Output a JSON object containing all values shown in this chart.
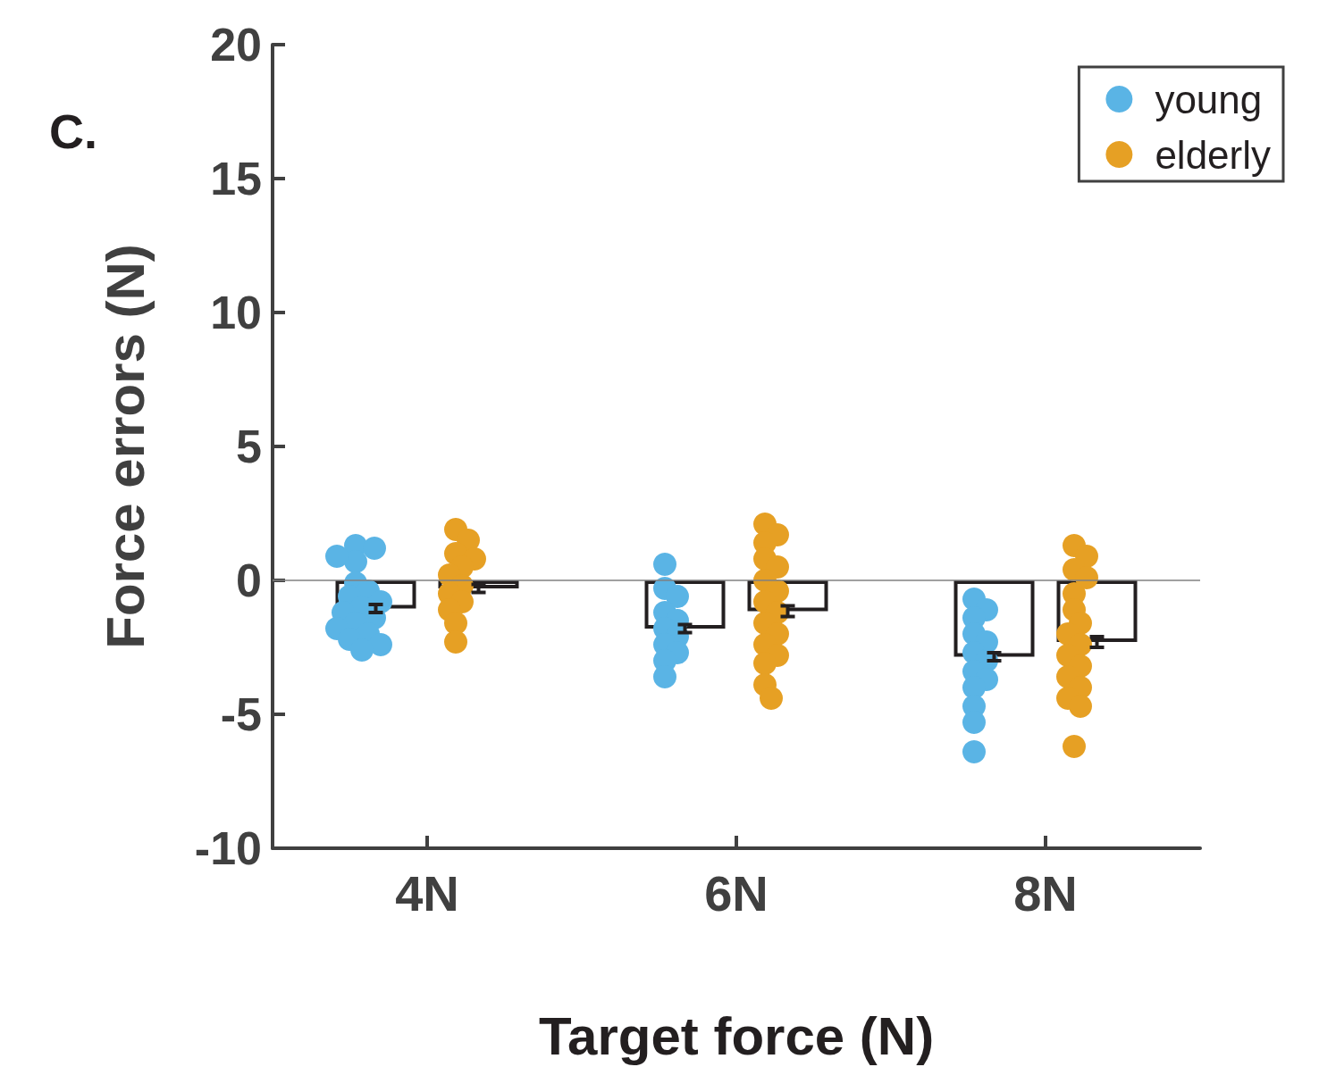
{
  "chart_data": {
    "type": "bar",
    "xlabel": "Target force (N)",
    "ylabel": "Force errors (N)",
    "annotations": [
      "C."
    ],
    "categories": [
      "4N",
      "6N",
      "8N"
    ],
    "ylim": [
      -10,
      20
    ],
    "yticks": [
      -10,
      -5,
      0,
      5,
      10,
      15,
      20
    ],
    "grid": false,
    "legend": "top right",
    "marker": "circle",
    "ref_lines": [
      {
        "axis": "y",
        "value": 0,
        "color": "#808080"
      }
    ],
    "series": [
      {
        "color": "#231f20",
        "values": [
          -1.05,
          -1.8,
          -2.85
        ],
        "errors": [
          0.15,
          0.15,
          0.15
        ]
      },
      {
        "color": "#231f20",
        "values": [
          -0.3,
          -1.15,
          -2.3
        ],
        "errors": [
          0.15,
          0.2,
          0.2
        ]
      },
      {
        "type": "scatter",
        "name": "young",
        "color": "#5ab4e5",
        "x": [
          "4N",
          "4N",
          "4N",
          "4N",
          "4N",
          "4N",
          "4N",
          "4N",
          "4N",
          "4N",
          "4N",
          "4N",
          "4N",
          "4N",
          "4N",
          "4N",
          "4N",
          "6N",
          "6N",
          "6N",
          "6N",
          "6N",
          "6N",
          "6N",
          "6N",
          "6N",
          "6N",
          "6N",
          "8N",
          "8N",
          "8N",
          "8N",
          "8N",
          "8N",
          "8N",
          "8N",
          "8N",
          "8N",
          "8N",
          "8N",
          "8N"
        ],
        "values": [
          1.3,
          1.2,
          0.7,
          0.9,
          -0.1,
          -0.4,
          -0.6,
          -0.8,
          -1.0,
          -1.2,
          -1.4,
          -1.6,
          -1.8,
          -2.0,
          -2.2,
          -2.4,
          -2.6,
          0.6,
          -0.3,
          -0.6,
          -1.2,
          -1.5,
          -1.8,
          -2.1,
          -2.4,
          -2.7,
          -3.0,
          -3.6,
          -0.7,
          -1.1,
          -1.4,
          -2.0,
          -2.3,
          -2.7,
          -3.0,
          -3.4,
          -3.7,
          -4.0,
          -4.7,
          -5.3,
          -6.4
        ]
      },
      {
        "type": "scatter",
        "name": "elderly",
        "color": "#e6a024",
        "x": [
          "4N",
          "4N",
          "4N",
          "4N",
          "4N",
          "4N",
          "4N",
          "4N",
          "4N",
          "4N",
          "4N",
          "4N",
          "6N",
          "6N",
          "6N",
          "6N",
          "6N",
          "6N",
          "6N",
          "6N",
          "6N",
          "6N",
          "6N",
          "6N",
          "6N",
          "6N",
          "6N",
          "6N",
          "8N",
          "8N",
          "8N",
          "8N",
          "8N",
          "8N",
          "8N",
          "8N",
          "8N",
          "8N",
          "8N",
          "8N",
          "8N",
          "8N",
          "8N",
          "8N"
        ],
        "values": [
          1.9,
          1.5,
          1.0,
          0.8,
          0.5,
          0.2,
          -0.2,
          -0.5,
          -0.8,
          -1.1,
          -1.6,
          -2.3,
          2.1,
          1.7,
          1.4,
          0.8,
          0.5,
          0,
          -0.4,
          -0.8,
          -1.2,
          -1.6,
          -2.0,
          -2.4,
          -2.8,
          -3.1,
          -3.9,
          -4.4,
          1.3,
          0.9,
          0.4,
          0.1,
          -0.5,
          -1.1,
          -1.6,
          -2.0,
          -2.4,
          -2.8,
          -3.2,
          -3.6,
          -4.0,
          -4.4,
          -4.7,
          -6.2
        ]
      }
    ]
  }
}
